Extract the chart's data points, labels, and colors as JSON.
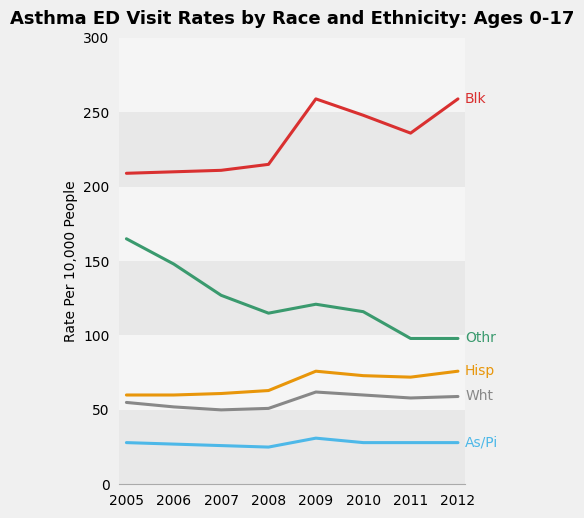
{
  "title": "Asthma ED Visit Rates by Race and Ethnicity: Ages 0-17",
  "xlabel": "",
  "ylabel": "Rate Per 10,000 People",
  "years": [
    2005,
    2006,
    2007,
    2008,
    2009,
    2010,
    2011,
    2012
  ],
  "series": {
    "Blk": {
      "values": [
        209,
        210,
        211,
        215,
        259,
        248,
        236,
        259
      ],
      "color": "#d93030",
      "label": "Blk"
    },
    "Othr": {
      "values": [
        165,
        148,
        127,
        115,
        121,
        116,
        98,
        98
      ],
      "color": "#3a9a6e",
      "label": "Othr"
    },
    "Hisp": {
      "values": [
        60,
        60,
        61,
        63,
        76,
        73,
        72,
        76
      ],
      "color": "#e8960a",
      "label": "Hisp"
    },
    "Wht": {
      "values": [
        55,
        52,
        50,
        51,
        62,
        60,
        58,
        59
      ],
      "color": "#888888",
      "label": "Wht"
    },
    "As/Pi": {
      "values": [
        28,
        27,
        26,
        25,
        31,
        28,
        28,
        28
      ],
      "color": "#4db8e8",
      "label": "As/Pi"
    }
  },
  "ylim": [
    0,
    300
  ],
  "yticks": [
    0,
    50,
    100,
    150,
    200,
    250,
    300
  ],
  "band_colors": [
    "#e8e8e8",
    "#f5f5f5"
  ],
  "background_color": "#f0f0f0",
  "title_fontsize": 13,
  "label_fontsize": 10,
  "tick_fontsize": 10,
  "linewidth": 2.2
}
